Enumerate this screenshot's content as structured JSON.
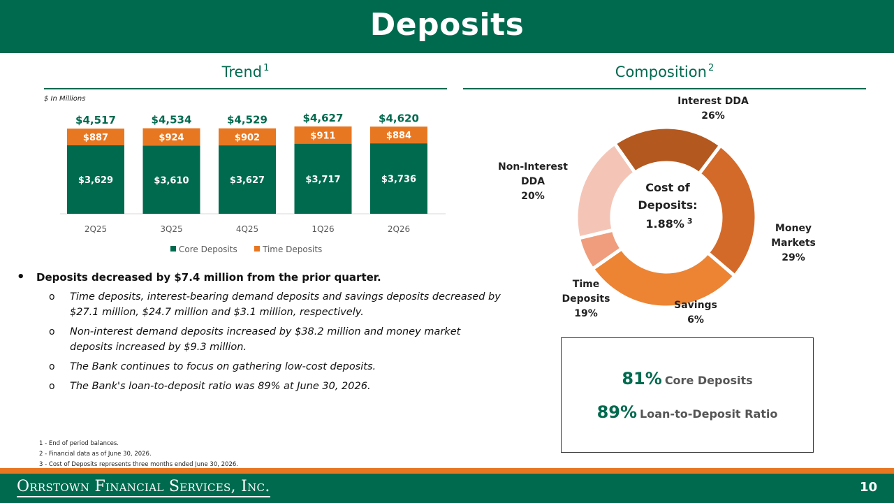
{
  "title": "Deposits",
  "trend": {
    "label": "Trend",
    "sup": "1",
    "units": "$ In Millions"
  },
  "composition": {
    "label": "Composition",
    "sup": "2"
  },
  "chart_data": [
    {
      "type": "bar",
      "stacked": true,
      "categories": [
        "2Q25",
        "3Q25",
        "4Q25",
        "1Q26",
        "2Q26"
      ],
      "series": [
        {
          "name": "Core Deposits",
          "values": [
            3629,
            3610,
            3627,
            3717,
            3736
          ],
          "labels": [
            "$3,629",
            "$3,610",
            "$3,627",
            "$3,717",
            "$3,736"
          ],
          "color": "#006a4e"
        },
        {
          "name": "Time Deposits",
          "values": [
            887,
            924,
            902,
            911,
            884
          ],
          "labels": [
            "$887",
            "$924",
            "$902",
            "$911",
            "$884"
          ],
          "color": "#e87722"
        }
      ],
      "totals": [
        "$4,517",
        "$4,534",
        "$4,529",
        "$4,627",
        "$4,620"
      ],
      "legend": "bottom",
      "grid": false,
      "ylim": [
        0,
        5000
      ]
    },
    {
      "type": "pie",
      "donut": true,
      "slices": [
        {
          "label": "Interest DDA",
          "value": 26,
          "pct_label": "26%",
          "color": "#d46a2a"
        },
        {
          "label": "Money Markets",
          "value": 29,
          "pct_label": "29%",
          "color": "#ec8434"
        },
        {
          "label": "Savings",
          "value": 6,
          "pct_label": "6%",
          "color": "#ef9d7c"
        },
        {
          "label": "Time Deposits",
          "value": 19,
          "pct_label": "19%",
          "color": "#f4c5b6"
        },
        {
          "label": "Non-Interest DDA",
          "value": 20,
          "pct_label": "20%",
          "color": "#b3581f"
        }
      ],
      "center_text": {
        "line1": "Cost of",
        "line2": "Deposits:",
        "line3": "1.88%",
        "sup": "3"
      }
    }
  ],
  "bullets": {
    "main": "Deposits decreased by $7.4 million from the prior quarter.",
    "subs": [
      "Time deposits, interest-bearing demand deposits and savings deposits decreased by $27.1 million, $24.7 million and $3.1 million, respectively.",
      "Non-interest demand deposits increased by $38.2 million and money market deposits increased by $9.3 million.",
      "The Bank continues to focus on gathering low-cost deposits.",
      "The Bank's loan-to-deposit ratio was 89% at June 30, 2026."
    ]
  },
  "stats": [
    {
      "pct": "81%",
      "label": "Core Deposits"
    },
    {
      "pct": "89%",
      "label": "Loan-to-Deposit Ratio"
    }
  ],
  "footnotes": [
    "1 - End of period balances.",
    "2 - Financial data as of June 30, 2026.",
    "3 - Cost of Deposits represents three months ended June 30, 2026."
  ],
  "footer": {
    "logo": "Orrstown Financial Services, Inc.",
    "page": "10"
  },
  "colors": {
    "brand_green": "#006a4e",
    "brand_orange": "#e87722"
  }
}
